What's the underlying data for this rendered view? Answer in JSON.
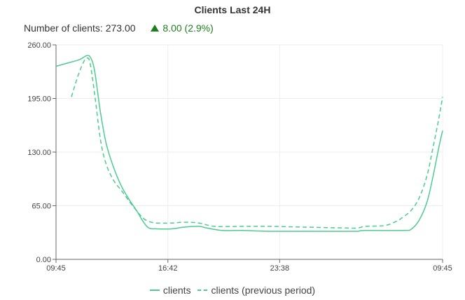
{
  "widget": {
    "title": "Clients Last 24H",
    "summary_label": "Number of clients: 273.00",
    "delta_text": "8.00 (2.9%)",
    "delta_color": "#1e7e1e",
    "delta_icon": "triangle-up-icon"
  },
  "legend": {
    "series_1": "clients",
    "series_2": "clients (previous period)"
  },
  "chart_data": {
    "type": "line",
    "title": "Clients Last 24H",
    "xlabel": "",
    "ylabel": "",
    "ylim": [
      0,
      260
    ],
    "yticks": [
      "0.00",
      "65.00",
      "130.00",
      "195.00",
      "260.00"
    ],
    "xticks": [
      "09:45",
      "16:42",
      "23:38",
      "09:45"
    ],
    "xtick_positions": [
      0,
      0.2894,
      0.5786,
      1.0
    ],
    "grid": true,
    "legend_position": "bottom",
    "line_color": "#4ccc8e",
    "series": [
      {
        "name": "clients",
        "style": "solid",
        "points": [
          [
            0.0,
            234
          ],
          [
            0.03,
            238
          ],
          [
            0.06,
            242
          ],
          [
            0.08,
            247
          ],
          [
            0.09,
            244
          ],
          [
            0.1,
            228
          ],
          [
            0.115,
            178
          ],
          [
            0.13,
            140
          ],
          [
            0.15,
            110
          ],
          [
            0.17,
            88
          ],
          [
            0.19,
            72
          ],
          [
            0.21,
            58
          ],
          [
            0.225,
            46
          ],
          [
            0.24,
            38
          ],
          [
            0.26,
            37
          ],
          [
            0.3,
            37
          ],
          [
            0.33,
            39
          ],
          [
            0.37,
            40
          ],
          [
            0.39,
            38
          ],
          [
            0.43,
            35
          ],
          [
            0.48,
            35
          ],
          [
            0.55,
            34
          ],
          [
            0.65,
            34
          ],
          [
            0.75,
            34
          ],
          [
            0.78,
            34
          ],
          [
            0.8,
            35
          ],
          [
            0.9,
            35
          ],
          [
            0.92,
            37
          ],
          [
            0.94,
            48
          ],
          [
            0.96,
            70
          ],
          [
            0.975,
            100
          ],
          [
            0.99,
            135
          ],
          [
            1.0,
            156
          ]
        ]
      },
      {
        "name": "clients (previous period)",
        "style": "dashed",
        "points": [
          [
            0.04,
            197
          ],
          [
            0.055,
            220
          ],
          [
            0.07,
            238
          ],
          [
            0.08,
            244
          ],
          [
            0.088,
            238
          ],
          [
            0.1,
            200
          ],
          [
            0.115,
            145
          ],
          [
            0.13,
            115
          ],
          [
            0.15,
            95
          ],
          [
            0.17,
            83
          ],
          [
            0.19,
            70
          ],
          [
            0.21,
            58
          ],
          [
            0.225,
            50
          ],
          [
            0.24,
            46
          ],
          [
            0.26,
            44
          ],
          [
            0.3,
            44
          ],
          [
            0.33,
            45
          ],
          [
            0.37,
            44
          ],
          [
            0.41,
            40
          ],
          [
            0.48,
            40
          ],
          [
            0.55,
            40
          ],
          [
            0.65,
            39
          ],
          [
            0.75,
            38
          ],
          [
            0.78,
            38
          ],
          [
            0.8,
            40
          ],
          [
            0.85,
            41
          ],
          [
            0.88,
            46
          ],
          [
            0.9,
            52
          ],
          [
            0.92,
            60
          ],
          [
            0.94,
            75
          ],
          [
            0.96,
            102
          ],
          [
            0.975,
            135
          ],
          [
            0.99,
            170
          ],
          [
            1.0,
            197
          ]
        ]
      }
    ]
  }
}
